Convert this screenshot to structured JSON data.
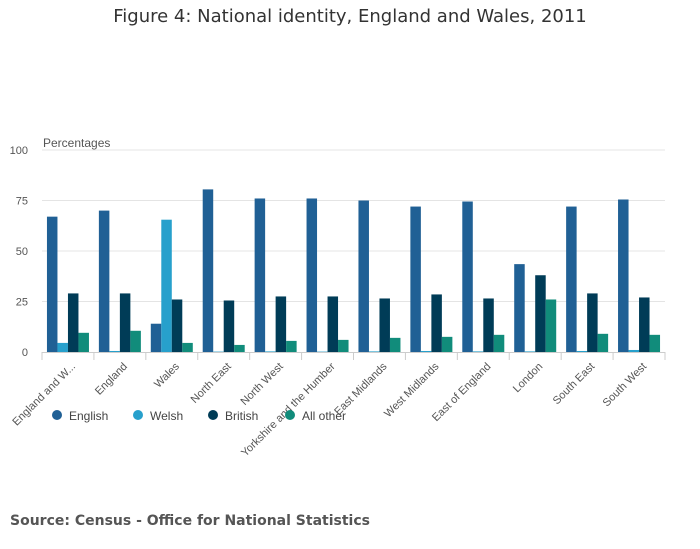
{
  "title": "Figure 4: National identity, England and Wales, 2011",
  "source": {
    "label": "Source:",
    "text": "Census - Office for National Statistics"
  },
  "chart_data": {
    "type": "bar",
    "title": "Figure 4: National identity, England and Wales, 2011",
    "ylabel": "Percentages",
    "xlabel": "",
    "ylim": [
      0,
      100
    ],
    "yticks": [
      0,
      25,
      50,
      75,
      100
    ],
    "grid": true,
    "legend_position": "bottom-left",
    "categories": [
      "England and W...",
      "England",
      "Wales",
      "North East",
      "North West",
      "Yorkshire and the Humber",
      "East Midlands",
      "West Midlands",
      "East of England",
      "London",
      "South East",
      "South West"
    ],
    "series": [
      {
        "name": "English",
        "color": "#206095",
        "values": [
          67,
          70,
          14,
          80.5,
          76,
          76,
          75,
          72,
          74.5,
          43.5,
          72,
          75.5
        ]
      },
      {
        "name": "Welsh",
        "color": "#27a0cc",
        "values": [
          4.5,
          0.5,
          65.5,
          0.2,
          0.3,
          0.2,
          0.3,
          0.5,
          0.3,
          0.3,
          0.5,
          1
        ]
      },
      {
        "name": "British",
        "color": "#003c57",
        "values": [
          29,
          29,
          26,
          25.5,
          27.5,
          27.5,
          26.5,
          28.5,
          26.5,
          38,
          29,
          27
        ]
      },
      {
        "name": "All other",
        "color": "#118c7b",
        "values": [
          9.5,
          10.5,
          4.5,
          3.5,
          5.5,
          6,
          7,
          7.5,
          8.5,
          26,
          9,
          8.5
        ]
      }
    ]
  }
}
